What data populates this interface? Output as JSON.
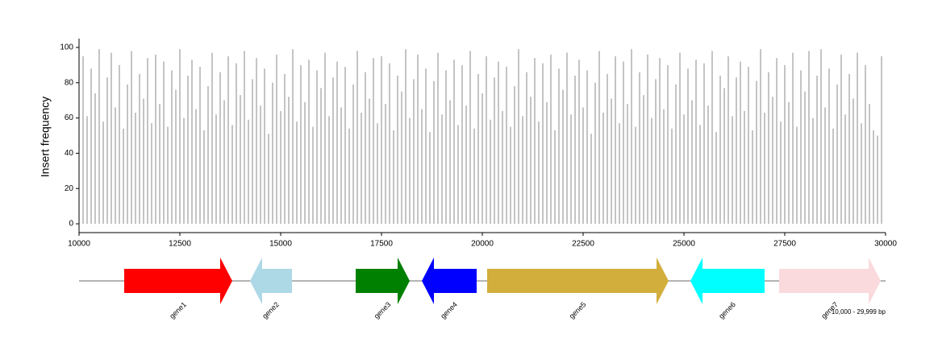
{
  "chart_data": {
    "type": "spike",
    "ylabel": "Insert frequency",
    "xlim": [
      10000,
      30000
    ],
    "xticks": [
      10000,
      12500,
      15000,
      17500,
      20000,
      22500,
      25000,
      27500,
      30000
    ],
    "ylim": [
      -5,
      105
    ],
    "yticks": [
      0,
      20,
      40,
      60,
      80,
      100
    ],
    "color": "#888888",
    "x": [
      10000,
      10100,
      10200,
      10300,
      10400,
      10500,
      10600,
      10700,
      10800,
      10900,
      11000,
      11100,
      11200,
      11300,
      11400,
      11500,
      11600,
      11700,
      11800,
      11900,
      12000,
      12100,
      12200,
      12300,
      12400,
      12500,
      12600,
      12700,
      12800,
      12900,
      13000,
      13100,
      13200,
      13300,
      13400,
      13500,
      13600,
      13700,
      13800,
      13900,
      14000,
      14100,
      14200,
      14300,
      14400,
      14500,
      14600,
      14700,
      14800,
      14900,
      15000,
      15100,
      15200,
      15300,
      15400,
      15500,
      15600,
      15700,
      15800,
      15900,
      16000,
      16100,
      16200,
      16300,
      16400,
      16500,
      16600,
      16700,
      16800,
      16900,
      17000,
      17100,
      17200,
      17300,
      17400,
      17500,
      17600,
      17700,
      17800,
      17900,
      18000,
      18100,
      18200,
      18300,
      18400,
      18500,
      18600,
      18700,
      18800,
      18900,
      19000,
      19100,
      19200,
      19300,
      19400,
      19500,
      19600,
      19700,
      19800,
      19900,
      20000,
      20100,
      20200,
      20300,
      20400,
      20500,
      20600,
      20700,
      20800,
      20900,
      21000,
      21100,
      21200,
      21300,
      21400,
      21500,
      21600,
      21700,
      21800,
      21900,
      22000,
      22100,
      22200,
      22300,
      22400,
      22500,
      22600,
      22700,
      22800,
      22900,
      23000,
      23100,
      23200,
      23300,
      23400,
      23500,
      23600,
      23700,
      23800,
      23900,
      24000,
      24100,
      24200,
      24300,
      24400,
      24500,
      24600,
      24700,
      24800,
      24900,
      25000,
      25100,
      25200,
      25300,
      25400,
      25500,
      25600,
      25700,
      25800,
      25900,
      26000,
      26100,
      26200,
      26300,
      26400,
      26500,
      26600,
      26700,
      26800,
      26900,
      27000,
      27100,
      27200,
      27300,
      27400,
      27500,
      27600,
      27700,
      27800,
      27900,
      28000,
      28100,
      28200,
      28300,
      28400,
      28500,
      28600,
      28700,
      28800,
      28900,
      29000,
      29100,
      29200,
      29300,
      29400,
      29500,
      29600,
      29700,
      29800,
      29900
    ],
    "values": [
      52,
      95,
      61,
      88,
      74,
      99,
      58,
      83,
      97,
      66,
      90,
      54,
      79,
      98,
      63,
      85,
      71,
      94,
      57,
      96,
      68,
      92,
      55,
      87,
      76,
      99,
      60,
      84,
      93,
      65,
      89,
      53,
      78,
      97,
      62,
      86,
      70,
      95,
      56,
      91,
      73,
      98,
      59,
      82,
      94,
      67,
      88,
      51,
      80,
      96,
      64,
      85,
      72,
      99,
      58,
      90,
      69,
      93,
      55,
      87,
      77,
      97,
      61,
      83,
      92,
      66,
      89,
      54,
      79,
      98,
      63,
      86,
      71,
      94,
      57,
      95,
      68,
      91,
      53,
      84,
      75,
      99,
      60,
      82,
      96,
      65,
      88,
      52,
      81,
      97,
      62,
      87,
      70,
      93,
      56,
      90,
      67,
      98,
      54,
      85,
      74,
      95,
      59,
      83,
      92,
      64,
      89,
      55,
      78,
      99,
      61,
      86,
      72,
      94,
      58,
      91,
      69,
      96,
      53,
      88,
      76,
      97,
      62,
      84,
      93,
      66,
      87,
      51,
      80,
      98,
      63,
      85,
      71,
      95,
      57,
      92,
      68,
      99,
      55,
      86,
      73,
      96,
      60,
      82,
      94,
      65,
      90,
      54,
      79,
      97,
      62,
      88,
      70,
      93,
      56,
      91,
      67,
      98,
      52,
      84,
      77,
      95,
      61,
      83,
      92,
      64,
      89,
      53,
      81,
      99,
      63,
      86,
      72,
      94,
      58,
      90,
      69,
      97,
      55,
      87,
      75,
      98,
      60,
      84,
      99,
      66,
      88,
      54,
      79,
      96,
      62,
      85,
      71,
      97,
      57,
      90,
      68,
      53,
      50,
      95
    ],
    "genes": [
      {
        "name": "gene1",
        "start": 11120,
        "end": 13800,
        "strand": "+",
        "color": "#ff0000"
      },
      {
        "name": "gene2",
        "start": 14240,
        "end": 15280,
        "strand": "-",
        "color": "#add8e6"
      },
      {
        "name": "gene3",
        "start": 16860,
        "end": 18200,
        "strand": "+",
        "color": "#008000"
      },
      {
        "name": "gene4",
        "start": 18500,
        "end": 19860,
        "strand": "-",
        "color": "#0000ff"
      },
      {
        "name": "gene5",
        "start": 20120,
        "end": 24620,
        "strand": "+",
        "color": "#d2ae3c"
      },
      {
        "name": "gene6",
        "start": 25160,
        "end": 27000,
        "strand": "-",
        "color": "#00ffff"
      },
      {
        "name": "gene7",
        "start": 27360,
        "end": 29880,
        "strand": "+",
        "color": "#fadadd"
      }
    ],
    "region_label": "10,000 - 29,999 bp"
  }
}
